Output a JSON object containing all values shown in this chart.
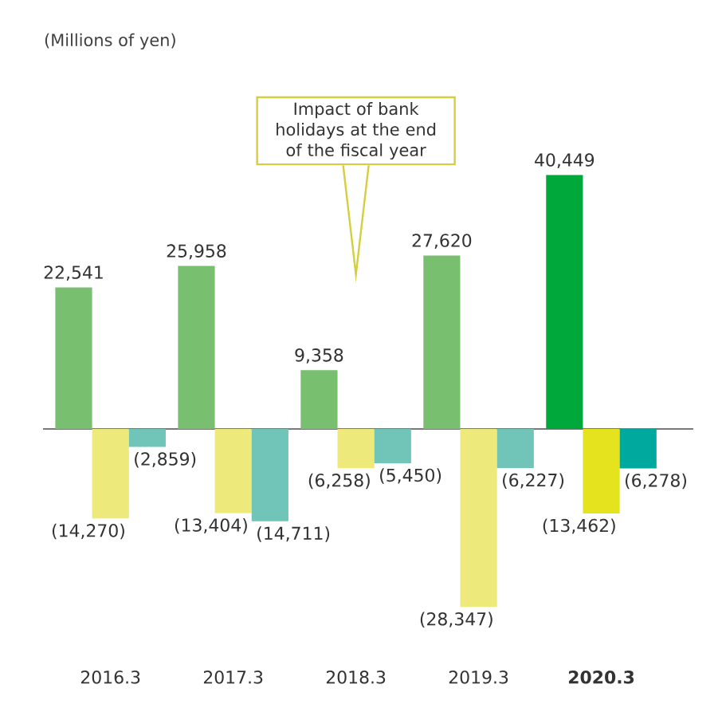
{
  "chart_data": {
    "type": "bar",
    "categories": [
      "2016.3",
      "2017.3",
      "2018.3",
      "2019.3",
      "**2020.3**"
    ],
    "series": [
      {
        "colors": [
          "#78bf6f",
          "#78bf6f",
          "#78bf6f",
          "#78bf6f",
          "#00a83c"
        ],
        "values": [
          22541,
          25958,
          9358,
          27620,
          40449
        ],
        "value_labels": [
          "22,541",
          "25,958",
          "9,358",
          "27,620",
          "40,449"
        ]
      },
      {
        "colors": [
          "#ede97a",
          "#ede97a",
          "#ede97a",
          "#ede97a",
          "#e5e21e"
        ],
        "values": [
          -14270,
          -13404,
          -6258,
          -28347,
          -13462
        ],
        "value_labels": [
          "(14,270)",
          "(13,404)",
          "(6,258)",
          "(28,347)",
          "(13,462)"
        ]
      },
      {
        "colors": [
          "#70c5b8",
          "#70c5b8",
          "#70c5b8",
          "#70c5b8",
          "#00a99d"
        ],
        "values": [
          -2859,
          -14711,
          -5450,
          -6227,
          -6278
        ],
        "value_labels": [
          "(2,859)",
          "(14,711)",
          "(5,450)",
          "(6,227)",
          "(6,278)"
        ]
      }
    ],
    "annotations": [
      "(Millions of yen)",
      "Impact of bank holidays at the end of the fiscal year"
    ]
  }
}
